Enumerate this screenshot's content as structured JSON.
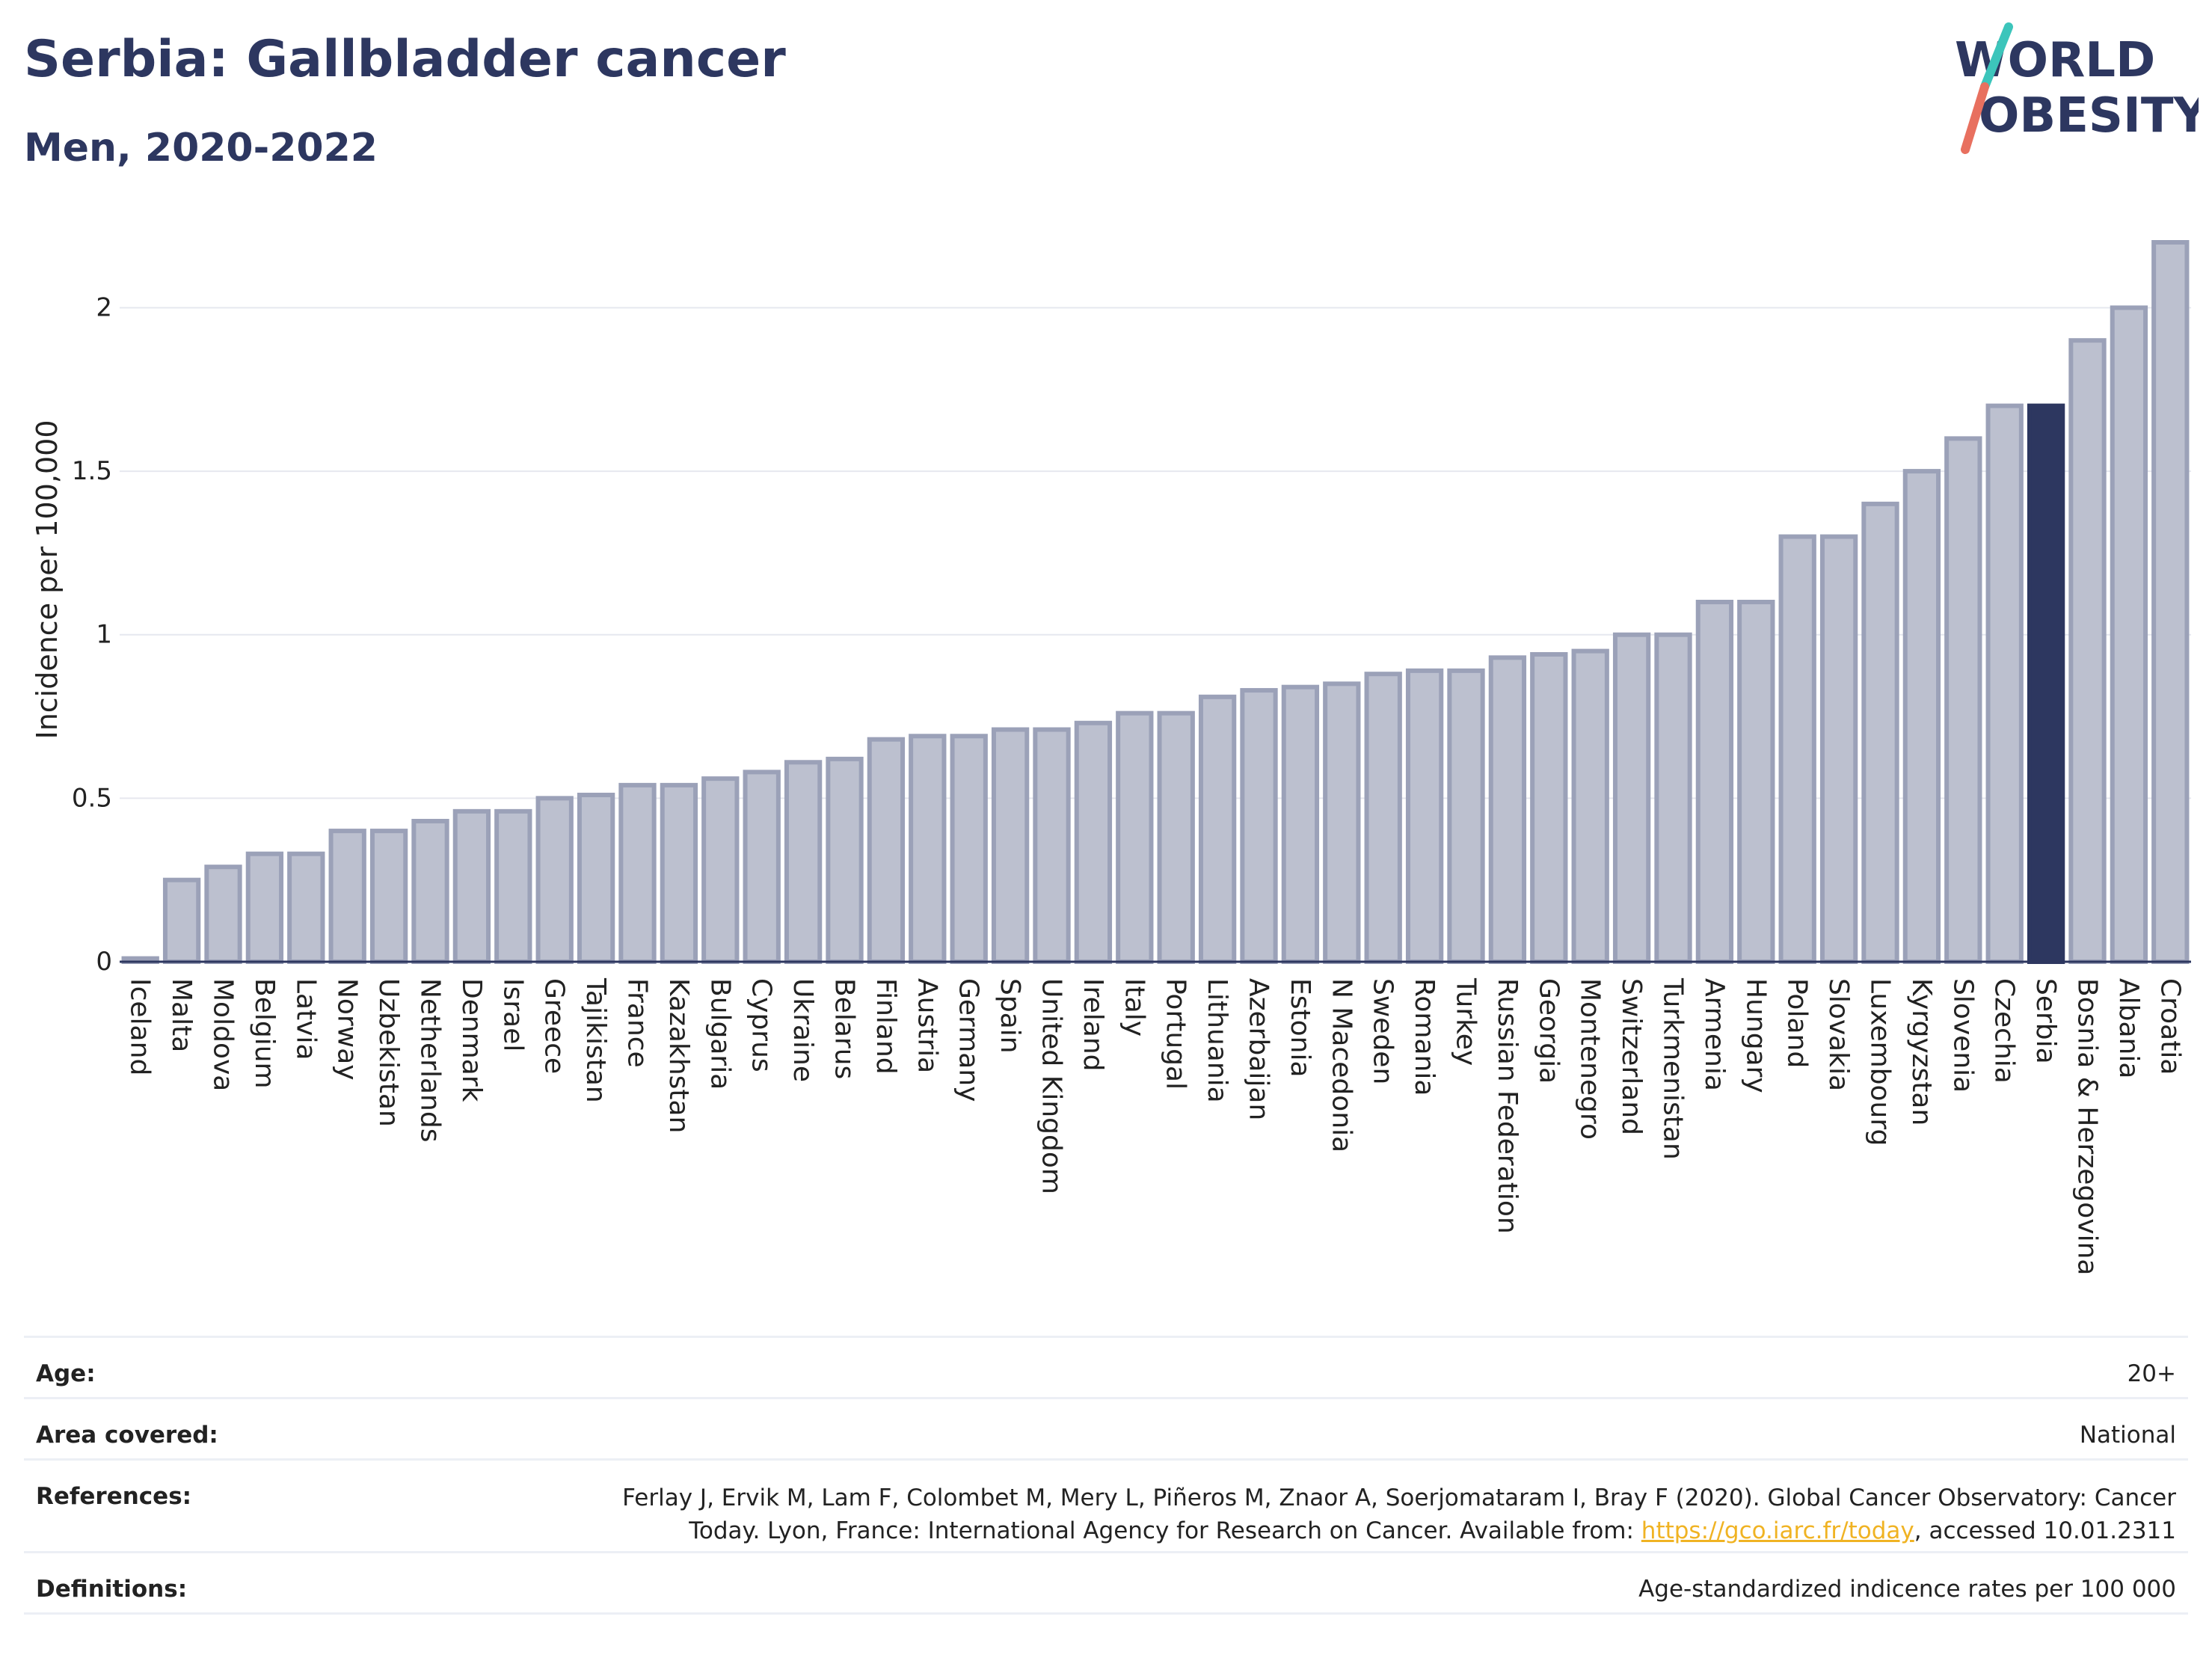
{
  "header": {
    "title": "Serbia: Gallbladder cancer",
    "subtitle": "Men, 2020-2022",
    "logo_line1": "WORLD",
    "logo_line2": "OBESITY"
  },
  "colors": {
    "highlight": "#2d3760",
    "bar_fill": "#bcc0cf",
    "bar_stroke": "#9ba1b8",
    "logo_teal": "#3cc5bb",
    "logo_coral": "#e8705f",
    "link": "#f0b323"
  },
  "chart_data": {
    "type": "bar",
    "ylabel": "Incidence per 100,000",
    "ylim": [
      0,
      2.2
    ],
    "yticks": [
      0,
      0.5,
      1,
      1.5,
      2
    ],
    "ytick_labels": [
      "0",
      "0.5",
      "1",
      "1.5",
      "2"
    ],
    "grid": true,
    "highlight_category": "Serbia",
    "categories": [
      "Iceland",
      "Malta",
      "Moldova",
      "Belgium",
      "Latvia",
      "Norway",
      "Uzbekistan",
      "Netherlands",
      "Denmark",
      "Israel",
      "Greece",
      "Tajikistan",
      "France",
      "Kazakhstan",
      "Bulgaria",
      "Cyprus",
      "Ukraine",
      "Belarus",
      "Finland",
      "Austria",
      "Germany",
      "Spain",
      "United Kingdom",
      "Ireland",
      "Italy",
      "Portugal",
      "Lithuania",
      "Azerbaijan",
      "Estonia",
      "N Macedonia",
      "Sweden",
      "Romania",
      "Turkey",
      "Russian Federation",
      "Georgia",
      "Montenegro",
      "Switzerland",
      "Turkmenistan",
      "Armenia",
      "Hungary",
      "Poland",
      "Slovakia",
      "Luxembourg",
      "Kyrgyzstan",
      "Slovenia",
      "Czechia",
      "Serbia",
      "Bosnia & Herzegovina",
      "Albania",
      "Croatia"
    ],
    "values": [
      0.01,
      0.25,
      0.29,
      0.33,
      0.33,
      0.4,
      0.4,
      0.43,
      0.46,
      0.46,
      0.5,
      0.51,
      0.54,
      0.54,
      0.56,
      0.58,
      0.61,
      0.62,
      0.68,
      0.69,
      0.69,
      0.71,
      0.71,
      0.73,
      0.76,
      0.76,
      0.81,
      0.83,
      0.84,
      0.85,
      0.88,
      0.89,
      0.89,
      0.93,
      0.94,
      0.95,
      1.0,
      1.0,
      1.1,
      1.1,
      1.3,
      1.3,
      1.4,
      1.5,
      1.6,
      1.7,
      1.7,
      1.9,
      2.0,
      2.2
    ]
  },
  "info": {
    "age_label": "Age:",
    "age_value": "20+",
    "area_label": "Area covered:",
    "area_value": "National",
    "references_label": "References:",
    "references_line1": "Ferlay J, Ervik M, Lam F, Colombet M, Mery L, Piñeros M, Znaor A, Soerjomataram I, Bray F (2020). Global Cancer Observatory: Cancer",
    "references_line2_pre": "Today. Lyon, France: International Agency for Research on Cancer. Available from: ",
    "references_link": "https://gco.iarc.fr/today",
    "references_line2_post": ", accessed 10.01.2311",
    "definitions_label": "Definitions:",
    "definitions_value": "Age-standardized indicence rates per 100 000"
  }
}
